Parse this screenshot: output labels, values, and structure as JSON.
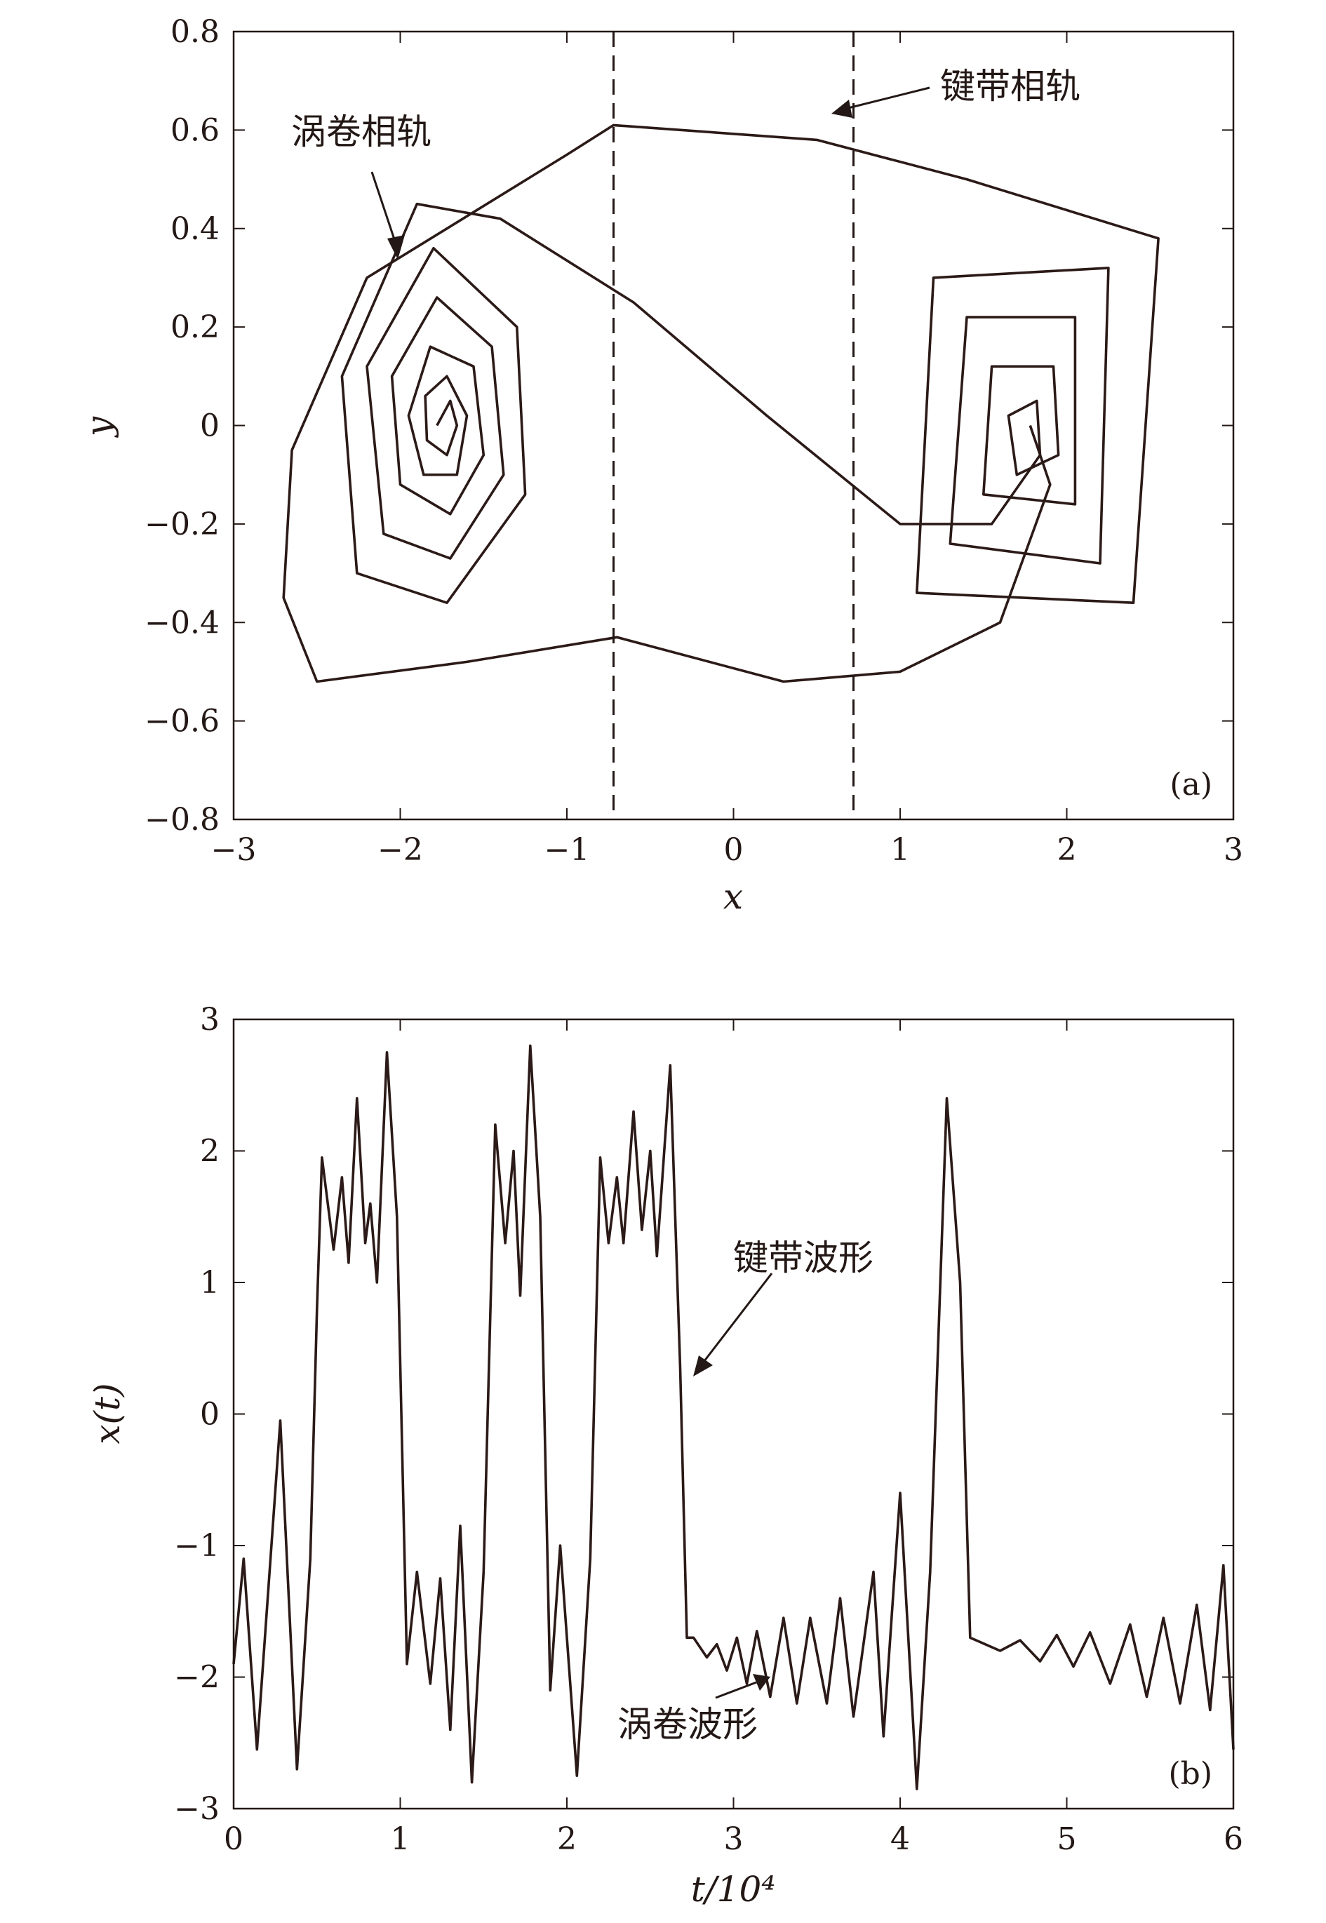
{
  "chart_data": [
    {
      "type": "line",
      "panel_label": "(a)",
      "xlabel": "x",
      "ylabel": "y",
      "xlim": [
        -3,
        3
      ],
      "ylim": [
        -0.8,
        0.8
      ],
      "x_ticks": [
        -3,
        -2,
        -1,
        0,
        1,
        2,
        3
      ],
      "x_tick_labels": [
        "−3",
        "−2",
        "−1",
        "0",
        "1",
        "2",
        "3"
      ],
      "y_ticks": [
        0.8,
        0.6,
        0.4,
        0.2,
        0,
        -0.2,
        -0.4,
        -0.6,
        -0.8
      ],
      "y_tick_labels": [
        "0.8",
        "0.6",
        "0.4",
        "0.2",
        "0",
        "−0.2",
        "−0.4",
        "−0.6",
        "−0.8"
      ],
      "grid": false,
      "dashed_lines_x": [
        -0.72,
        0.72
      ],
      "attractor_centers": [
        [
          -1.78,
          0.0
        ],
        [
          1.75,
          0.0
        ]
      ],
      "series": [
        {
          "points": [
            [
              -1.78,
              0.0
            ],
            [
              -1.7,
              0.05
            ],
            [
              -1.66,
              0.0
            ],
            [
              -1.72,
              -0.06
            ],
            [
              -1.84,
              -0.03
            ],
            [
              -1.85,
              0.06
            ],
            [
              -1.72,
              0.1
            ],
            [
              -1.6,
              0.02
            ],
            [
              -1.66,
              -0.1
            ],
            [
              -1.86,
              -0.1
            ],
            [
              -1.95,
              0.02
            ],
            [
              -1.82,
              0.16
            ],
            [
              -1.56,
              0.12
            ],
            [
              -1.5,
              -0.06
            ],
            [
              -1.7,
              -0.18
            ],
            [
              -2.0,
              -0.12
            ],
            [
              -2.05,
              0.1
            ],
            [
              -1.78,
              0.26
            ],
            [
              -1.45,
              0.16
            ],
            [
              -1.38,
              -0.1
            ],
            [
              -1.7,
              -0.27
            ],
            [
              -2.1,
              -0.22
            ],
            [
              -2.2,
              0.12
            ],
            [
              -1.8,
              0.36
            ],
            [
              -1.3,
              0.2
            ],
            [
              -1.25,
              -0.14
            ],
            [
              -1.72,
              -0.36
            ],
            [
              -2.26,
              -0.3
            ],
            [
              -2.35,
              0.1
            ],
            [
              -1.9,
              0.45
            ],
            [
              -1.4,
              0.42
            ],
            [
              -0.6,
              0.25
            ],
            [
              0.2,
              0.02
            ],
            [
              1.0,
              -0.2
            ],
            [
              1.55,
              -0.2
            ],
            [
              1.84,
              -0.06
            ],
            [
              1.82,
              0.05
            ],
            [
              1.65,
              0.02
            ],
            [
              1.7,
              -0.1
            ],
            [
              1.95,
              -0.06
            ],
            [
              1.92,
              0.12
            ],
            [
              1.55,
              0.12
            ],
            [
              1.5,
              -0.14
            ],
            [
              2.05,
              -0.16
            ],
            [
              2.05,
              0.22
            ],
            [
              1.4,
              0.22
            ],
            [
              1.3,
              -0.24
            ],
            [
              2.2,
              -0.28
            ],
            [
              2.25,
              0.32
            ],
            [
              1.2,
              0.3
            ],
            [
              1.1,
              -0.34
            ],
            [
              2.4,
              -0.36
            ],
            [
              2.55,
              0.38
            ],
            [
              1.4,
              0.5
            ],
            [
              0.5,
              0.58
            ],
            [
              -0.72,
              0.61
            ],
            [
              -1.0,
              0.55
            ],
            [
              -2.2,
              0.3
            ],
            [
              -2.65,
              -0.05
            ],
            [
              -2.7,
              -0.35
            ],
            [
              -2.5,
              -0.52
            ],
            [
              -1.6,
              -0.48
            ],
            [
              -0.7,
              -0.43
            ],
            [
              0.3,
              -0.52
            ],
            [
              1.0,
              -0.5
            ],
            [
              1.6,
              -0.4
            ],
            [
              1.9,
              -0.12
            ],
            [
              1.78,
              0.0
            ]
          ]
        }
      ],
      "annotations": [
        "涡卷相轨",
        "键带相轨"
      ]
    },
    {
      "type": "line",
      "panel_label": "(b)",
      "xlabel": "t/10⁴",
      "ylabel": "x(t)",
      "xlim": [
        0,
        6
      ],
      "ylim": [
        -3,
        3
      ],
      "x_ticks": [
        0,
        1,
        2,
        3,
        4,
        5,
        6
      ],
      "x_tick_labels": [
        "0",
        "1",
        "2",
        "3",
        "4",
        "5",
        "6"
      ],
      "y_ticks": [
        3,
        2,
        1,
        0,
        -1,
        -2,
        -3
      ],
      "y_tick_labels": [
        "3",
        "2",
        "1",
        "0",
        "−1",
        "−2",
        "−3"
      ],
      "grid": false,
      "series": [
        {
          "points": [
            [
              0.0,
              -1.9
            ],
            [
              0.06,
              -1.1
            ],
            [
              0.14,
              -2.55
            ],
            [
              0.28,
              -0.05
            ],
            [
              0.38,
              -2.7
            ],
            [
              0.46,
              -1.1
            ],
            [
              0.5,
              0.8
            ],
            [
              0.53,
              1.95
            ],
            [
              0.6,
              1.25
            ],
            [
              0.65,
              1.8
            ],
            [
              0.69,
              1.15
            ],
            [
              0.74,
              2.4
            ],
            [
              0.79,
              1.3
            ],
            [
              0.82,
              1.6
            ],
            [
              0.86,
              1.0
            ],
            [
              0.92,
              2.75
            ],
            [
              0.98,
              1.5
            ],
            [
              1.04,
              -1.9
            ],
            [
              1.1,
              -1.2
            ],
            [
              1.18,
              -2.05
            ],
            [
              1.24,
              -1.25
            ],
            [
              1.3,
              -2.4
            ],
            [
              1.36,
              -0.85
            ],
            [
              1.43,
              -2.8
            ],
            [
              1.5,
              -1.2
            ],
            [
              1.57,
              2.2
            ],
            [
              1.63,
              1.3
            ],
            [
              1.68,
              2.0
            ],
            [
              1.72,
              0.9
            ],
            [
              1.78,
              2.8
            ],
            [
              1.84,
              1.5
            ],
            [
              1.9,
              -2.1
            ],
            [
              1.96,
              -1.0
            ],
            [
              2.06,
              -2.75
            ],
            [
              2.14,
              -1.1
            ],
            [
              2.2,
              1.95
            ],
            [
              2.25,
              1.3
            ],
            [
              2.3,
              1.8
            ],
            [
              2.34,
              1.3
            ],
            [
              2.4,
              2.3
            ],
            [
              2.45,
              1.4
            ],
            [
              2.5,
              2.0
            ],
            [
              2.54,
              1.2
            ],
            [
              2.62,
              2.65
            ],
            [
              2.68,
              0.35
            ],
            [
              2.72,
              -1.7
            ],
            [
              2.76,
              -1.7
            ],
            [
              2.84,
              -1.85
            ],
            [
              2.9,
              -1.75
            ],
            [
              2.96,
              -1.95
            ],
            [
              3.02,
              -1.7
            ],
            [
              3.08,
              -2.05
            ],
            [
              3.14,
              -1.65
            ],
            [
              3.22,
              -2.15
            ],
            [
              3.3,
              -1.55
            ],
            [
              3.38,
              -2.2
            ],
            [
              3.46,
              -1.55
            ],
            [
              3.56,
              -2.2
            ],
            [
              3.64,
              -1.4
            ],
            [
              3.72,
              -2.3
            ],
            [
              3.84,
              -1.2
            ],
            [
              3.9,
              -2.45
            ],
            [
              4.0,
              -0.6
            ],
            [
              4.1,
              -2.85
            ],
            [
              4.18,
              -1.2
            ],
            [
              4.28,
              2.4
            ],
            [
              4.36,
              1.0
            ],
            [
              4.42,
              -1.7
            ],
            [
              4.6,
              -1.8
            ],
            [
              4.72,
              -1.72
            ],
            [
              4.84,
              -1.88
            ],
            [
              4.94,
              -1.68
            ],
            [
              5.04,
              -1.92
            ],
            [
              5.14,
              -1.66
            ],
            [
              5.26,
              -2.05
            ],
            [
              5.38,
              -1.6
            ],
            [
              5.48,
              -2.15
            ],
            [
              5.58,
              -1.55
            ],
            [
              5.68,
              -2.2
            ],
            [
              5.78,
              -1.45
            ],
            [
              5.86,
              -2.25
            ],
            [
              5.94,
              -1.15
            ],
            [
              6.0,
              -2.55
            ]
          ]
        }
      ],
      "annotations": [
        "键带波形",
        "涡卷波形"
      ]
    }
  ]
}
